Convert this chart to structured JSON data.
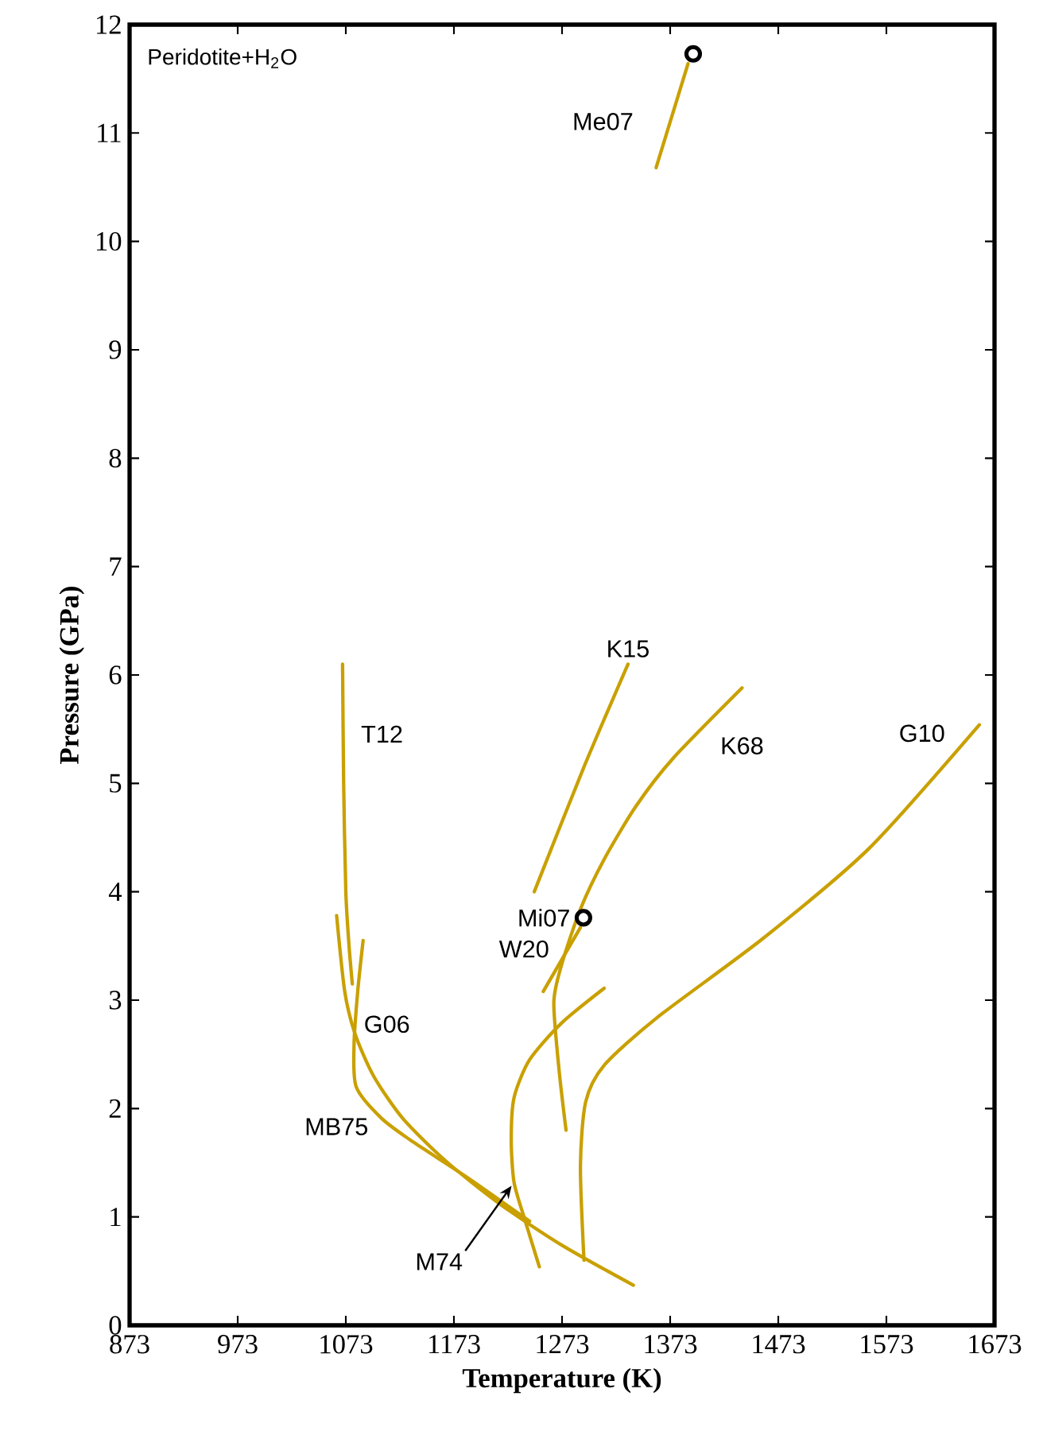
{
  "chart_data": {
    "type": "line",
    "title": "Peridotite+H$_{2}$O",
    "xlabel": "Temperature (K)",
    "ylabel": "Pressure (GPa)",
    "xlim": [
      873,
      1673
    ],
    "ylim": [
      0,
      12
    ],
    "xticks": [
      873,
      973,
      1073,
      1173,
      1273,
      1373,
      1473,
      1573,
      1673
    ],
    "yticks": [
      0,
      1,
      2,
      3,
      4,
      5,
      6,
      7,
      8,
      9,
      10,
      11,
      12
    ],
    "marker": "none",
    "line_style": "solid",
    "series": [
      {
        "name": "Me07",
        "color": "#c9a000",
        "x": [
          1360,
          1389.5
        ],
        "values": [
          10.68,
          11.64
        ]
      },
      {
        "name": "K15",
        "color": "#c9a000",
        "x": [
          1247.3,
          1292.4,
          1334
        ],
        "values": [
          4.0,
          5.13,
          6.1
        ]
      },
      {
        "name": "K68",
        "color": "#c9a000",
        "x": [
          1276.7,
          1270.3,
          1265.4,
          1272.7,
          1290,
          1312,
          1341.4,
          1375.6,
          1439.5
        ],
        "values": [
          1.8,
          2.35,
          2.98,
          3.33,
          3.84,
          4.3,
          4.79,
          5.23,
          5.88
        ]
      },
      {
        "name": "G10",
        "color": "#c9a000",
        "x": [
          1293.3,
          1290,
          1294.8,
          1312,
          1361,
          1459,
          1557,
          1659
        ],
        "values": [
          0.6,
          1.47,
          2.06,
          2.4,
          2.84,
          3.57,
          4.4,
          5.54
        ]
      },
      {
        "name": "T12",
        "color": "#c9a000",
        "x": [
          1070,
          1071,
          1073,
          1076,
          1079
        ],
        "values": [
          6.1,
          5.0,
          4.0,
          3.5,
          3.15
        ]
      },
      {
        "name": "W20",
        "color": "#c9a000",
        "x": [
          1255.6,
          1290
        ],
        "values": [
          3.08,
          3.67
        ]
      },
      {
        "name": "G06",
        "color": "#c9a000",
        "x": [
          1064.5,
          1072,
          1081.5,
          1098.7,
          1125.6,
          1165,
          1214,
          1272.7,
          1339
        ],
        "values": [
          3.78,
          3.08,
          2.69,
          2.3,
          1.91,
          1.52,
          1.13,
          0.74,
          0.37
        ]
      },
      {
        "name": "MB75",
        "color": "#c9a000",
        "x": [
          1089,
          1084,
          1080.6,
          1082.6,
          1106,
          1135.5,
          1184.5,
          1243
        ],
        "values": [
          3.55,
          3.08,
          2.59,
          2.2,
          1.91,
          1.69,
          1.37,
          0.96
        ]
      },
      {
        "name": "M74",
        "color": "#c9a000",
        "x": [
          1312,
          1272.7,
          1243,
          1228.6,
          1226,
          1228.6,
          1238.4,
          1252
        ],
        "values": [
          3.11,
          2.79,
          2.45,
          2.1,
          1.71,
          1.32,
          0.98,
          0.54
        ]
      },
      {
        "name": "Mi07",
        "type": "scatter",
        "marker": "circle",
        "color": "#000000",
        "x": [
          1292.8
        ],
        "values": [
          3.76
        ]
      },
      {
        "type": "scatter",
        "marker": "circle",
        "color": "#000000",
        "x": [
          1394.3
        ],
        "values": [
          11.73
        ]
      }
    ]
  }
}
